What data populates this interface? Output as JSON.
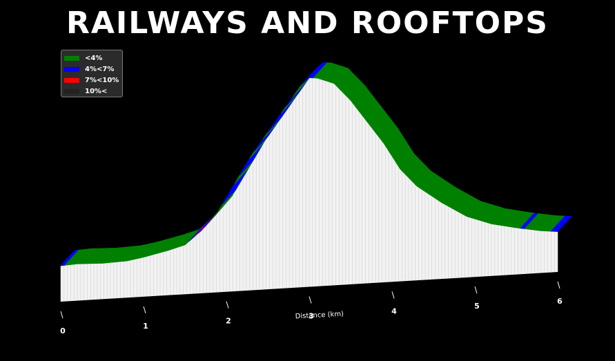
{
  "chart_data": {
    "type": "area",
    "title": "RAILWAYS AND ROOFTOPS",
    "xlabel": "Distance (km)",
    "ylabel": "",
    "xlim": [
      0,
      6
    ],
    "x_ticks": [
      "0",
      "1",
      "2",
      "3",
      "4",
      "5",
      "6"
    ],
    "legend_position": "top-left",
    "legend": [
      {
        "label": "<4%",
        "color": "#008000"
      },
      {
        "label": "4%<7%",
        "color": "#0000ff"
      },
      {
        "label": "7%<10%",
        "color": "#ff0000"
      },
      {
        "label": "10%<",
        "color": "#222222"
      }
    ],
    "profile": {
      "x": [
        0.0,
        0.2,
        0.5,
        0.8,
        1.0,
        1.3,
        1.5,
        1.7,
        1.9,
        2.1,
        2.3,
        2.5,
        2.7,
        2.9,
        3.0,
        3.1,
        3.3,
        3.5,
        3.7,
        3.9,
        4.1,
        4.3,
        4.6,
        4.9,
        5.2,
        5.5,
        5.8,
        6.0
      ],
      "elevation": [
        40,
        41,
        40,
        41,
        44,
        50,
        55,
        70,
        90,
        120,
        150,
        175,
        200,
        225,
        233,
        232,
        225,
        205,
        180,
        155,
        125,
        105,
        85,
        68,
        58,
        52,
        47,
        45
      ]
    },
    "gradient_segments": [
      {
        "x0": 0.0,
        "x1": 0.05,
        "class": "4%<7%"
      },
      {
        "x0": 0.05,
        "x1": 1.55,
        "class": "<4%"
      },
      {
        "x0": 1.55,
        "x1": 1.62,
        "class": "4%<7%"
      },
      {
        "x0": 1.62,
        "x1": 1.65,
        "class": "7%<10%"
      },
      {
        "x0": 1.65,
        "x1": 1.7,
        "class": "4%<7%"
      },
      {
        "x0": 1.7,
        "x1": 1.73,
        "class": "7%<10%"
      },
      {
        "x0": 1.73,
        "x1": 1.8,
        "class": "4%<7%"
      },
      {
        "x0": 1.8,
        "x1": 1.95,
        "class": "<4%"
      },
      {
        "x0": 1.95,
        "x1": 2.1,
        "class": "4%<7%"
      },
      {
        "x0": 2.1,
        "x1": 2.16,
        "class": "<4%"
      },
      {
        "x0": 2.16,
        "x1": 2.28,
        "class": "4%<7%"
      },
      {
        "x0": 2.28,
        "x1": 2.34,
        "class": "<4%"
      },
      {
        "x0": 2.34,
        "x1": 2.44,
        "class": "4%<7%"
      },
      {
        "x0": 2.44,
        "x1": 2.5,
        "class": "<4%"
      },
      {
        "x0": 2.5,
        "x1": 2.66,
        "class": "4%<7%"
      },
      {
        "x0": 2.66,
        "x1": 2.72,
        "class": "<4%"
      },
      {
        "x0": 2.72,
        "x1": 2.8,
        "class": "4%<7%"
      },
      {
        "x0": 2.8,
        "x1": 2.9,
        "class": "<4%"
      },
      {
        "x0": 2.9,
        "x1": 3.05,
        "class": "4%<7%"
      },
      {
        "x0": 3.05,
        "x1": 5.55,
        "class": "<4%"
      },
      {
        "x0": 5.55,
        "x1": 5.6,
        "class": "4%<7%"
      },
      {
        "x0": 5.6,
        "x1": 5.92,
        "class": "<4%"
      },
      {
        "x0": 5.92,
        "x1": 6.0,
        "class": "4%<7%"
      }
    ],
    "grid": false
  }
}
